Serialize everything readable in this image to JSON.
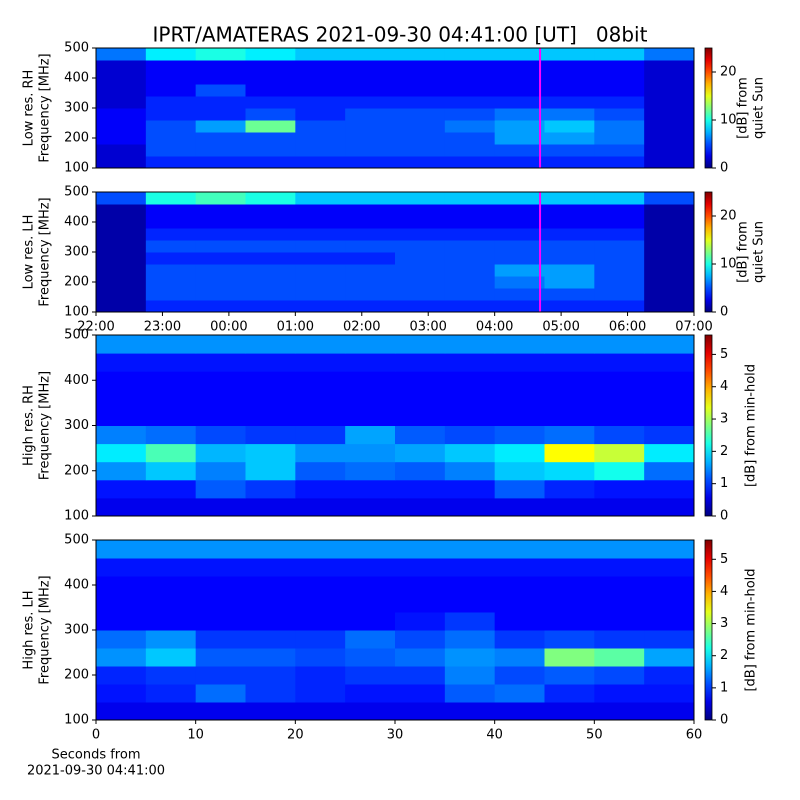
{
  "chart_data": [
    {
      "type": "heatmap",
      "title": "IPRT/AMATERAS 2021-09-30 04:41:00 [UT]   08bit",
      "ylabel": [
        "Low res. RH",
        "Frequency [MHz]"
      ],
      "cbar_label": [
        "[dB] from",
        "quiet Sun"
      ],
      "xlim": [
        22,
        31
      ],
      "ylim": [
        100,
        500
      ],
      "yticks": [
        100,
        200,
        300,
        400,
        500
      ],
      "clim": [
        0,
        25
      ],
      "cticks": [
        0,
        10,
        20
      ],
      "vline": 28.683,
      "vline_color": "#ff00ff",
      "z": [
        [
          2,
          4,
          4,
          4,
          4,
          4,
          4,
          4,
          4,
          4,
          4,
          2
        ],
        [
          2,
          5,
          5,
          5,
          5,
          5,
          5,
          5,
          5,
          5,
          5,
          2
        ],
        [
          3,
          5,
          5,
          5,
          5,
          5,
          5,
          5,
          7,
          7,
          6,
          2
        ],
        [
          3,
          5,
          7,
          12,
          5,
          5,
          5,
          6,
          7,
          8,
          6,
          2
        ],
        [
          3,
          4,
          4,
          5,
          4,
          5,
          5,
          5,
          6,
          6,
          5,
          2
        ],
        [
          2,
          4,
          4,
          4,
          4,
          4,
          4,
          4,
          4,
          4,
          4,
          2
        ],
        [
          2,
          3,
          5,
          3,
          3,
          3,
          3,
          3,
          3,
          3,
          3,
          2
        ],
        [
          2,
          3,
          3,
          3,
          3,
          3,
          3,
          3,
          3,
          3,
          3,
          2
        ],
        [
          2,
          3,
          3,
          3,
          3,
          3,
          3,
          3,
          3,
          3,
          3,
          2
        ],
        [
          6,
          9,
          10,
          9,
          8,
          8,
          8,
          8,
          8,
          8,
          8,
          6
        ]
      ]
    },
    {
      "type": "heatmap",
      "ylabel": [
        "Low res. LH",
        "Frequency [MHz]"
      ],
      "cbar_label": [
        "[dB] from",
        "quiet Sun"
      ],
      "xlim": [
        22,
        31
      ],
      "ylim": [
        100,
        500
      ],
      "yticks": [
        100,
        200,
        300,
        400,
        500
      ],
      "xticks": [
        {
          "value": 22,
          "label": "22:00"
        },
        {
          "value": 23,
          "label": "23:00"
        },
        {
          "value": 24,
          "label": "00:00"
        },
        {
          "value": 25,
          "label": "01:00"
        },
        {
          "value": 26,
          "label": "02:00"
        },
        {
          "value": 27,
          "label": "03:00"
        },
        {
          "value": 28,
          "label": "04:00"
        },
        {
          "value": 29,
          "label": "05:00"
        },
        {
          "value": 30,
          "label": "06:00"
        },
        {
          "value": 31,
          "label": "07:00"
        }
      ],
      "clim": [
        0,
        25
      ],
      "cticks": [
        0,
        10,
        20
      ],
      "vline": 28.683,
      "vline_color": "#ff00ff",
      "z": [
        [
          1,
          4,
          4,
          4,
          4,
          4,
          4,
          4,
          4,
          4,
          4,
          1
        ],
        [
          1,
          5,
          5,
          5,
          5,
          5,
          5,
          5,
          5,
          5,
          5,
          1
        ],
        [
          1,
          5,
          5,
          5,
          5,
          5,
          5,
          5,
          6,
          7,
          5,
          1
        ],
        [
          1,
          5,
          5,
          5,
          5,
          5,
          5,
          5,
          7,
          7,
          5,
          1
        ],
        [
          1,
          4,
          4,
          4,
          4,
          4,
          5,
          5,
          5,
          5,
          5,
          1
        ],
        [
          1,
          5,
          5,
          5,
          5,
          5,
          5,
          5,
          5,
          5,
          5,
          1
        ],
        [
          1,
          4,
          4,
          4,
          4,
          4,
          4,
          4,
          4,
          4,
          4,
          1
        ],
        [
          1,
          3,
          3,
          3,
          3,
          3,
          3,
          3,
          3,
          3,
          3,
          1
        ],
        [
          1,
          3,
          3,
          3,
          3,
          3,
          3,
          3,
          3,
          3,
          3,
          1
        ],
        [
          5,
          10,
          11,
          10,
          8,
          8,
          8,
          8,
          8,
          8,
          8,
          5
        ]
      ]
    },
    {
      "type": "heatmap",
      "ylabel": [
        "High res. RH",
        "Frequency [MHz]"
      ],
      "cbar_label": [
        "[dB] from min-hold"
      ],
      "xlim": [
        0,
        60
      ],
      "ylim": [
        100,
        500
      ],
      "yticks": [
        100,
        200,
        300,
        400,
        500
      ],
      "clim": [
        0,
        5.6
      ],
      "cticks": [
        0,
        1,
        2,
        3,
        4,
        5
      ],
      "z": [
        [
          0.6,
          0.6,
          0.6,
          0.6,
          0.6,
          0.6,
          0.6,
          0.6,
          0.6,
          0.6,
          0.6,
          0.6
        ],
        [
          0.8,
          0.8,
          1.2,
          1,
          0.8,
          0.8,
          0.8,
          0.8,
          1.2,
          0.9,
          0.8,
          0.8
        ],
        [
          1.5,
          1.8,
          1.4,
          1.8,
          1.2,
          1.3,
          1.2,
          1.4,
          1.8,
          1.9,
          2.2,
          1.3
        ],
        [
          2,
          2.5,
          1.7,
          1.8,
          1.5,
          1.5,
          1.6,
          1.8,
          2,
          3.5,
          3.2,
          2
        ],
        [
          1.4,
          1.3,
          1.1,
          1,
          1,
          1.6,
          1.2,
          1.1,
          1.2,
          1.3,
          1.1,
          1
        ],
        [
          0.7,
          0.7,
          0.7,
          0.7,
          0.7,
          0.7,
          0.7,
          0.7,
          0.7,
          0.7,
          0.7,
          0.7
        ],
        [
          0.7,
          0.7,
          0.7,
          0.7,
          0.7,
          0.7,
          0.7,
          0.7,
          0.7,
          0.7,
          0.7,
          0.7
        ],
        [
          0.7,
          0.7,
          0.7,
          0.7,
          0.7,
          0.7,
          0.7,
          0.7,
          0.7,
          0.7,
          0.7,
          0.7
        ],
        [
          0.8,
          0.8,
          0.8,
          0.8,
          0.8,
          0.8,
          0.8,
          0.8,
          0.8,
          0.8,
          0.8,
          0.8
        ],
        [
          1.5,
          1.5,
          1.5,
          1.5,
          1.5,
          1.5,
          1.5,
          1.5,
          1.5,
          1.5,
          1.5,
          1.5
        ]
      ]
    },
    {
      "type": "heatmap",
      "ylabel": [
        "High res. LH",
        "Frequency [MHz]"
      ],
      "cbar_label": [
        "[dB] from min-hold"
      ],
      "xlim": [
        0,
        60
      ],
      "ylim": [
        100,
        500
      ],
      "yticks": [
        100,
        200,
        300,
        400,
        500
      ],
      "xticks": [
        0,
        10,
        20,
        30,
        40,
        50,
        60
      ],
      "xlabel": [
        "Seconds from",
        "2021-09-30 04:41:00"
      ],
      "clim": [
        0,
        5.6
      ],
      "cticks": [
        0,
        1,
        2,
        3,
        4,
        5
      ],
      "z": [
        [
          0.6,
          0.6,
          0.6,
          0.6,
          0.6,
          0.6,
          0.6,
          0.6,
          0.6,
          0.6,
          0.6,
          0.6
        ],
        [
          0.8,
          0.9,
          1.3,
          1,
          0.9,
          0.8,
          0.8,
          1.2,
          1.3,
          0.9,
          0.8,
          0.8
        ],
        [
          0.9,
          1,
          1,
          1,
          0.9,
          1,
          1,
          1.4,
          1.1,
          1.2,
          1.1,
          0.9
        ],
        [
          1.5,
          1.8,
          1.2,
          1.2,
          1.1,
          1.2,
          1.3,
          1.5,
          1.4,
          2.8,
          2.6,
          1.6
        ],
        [
          1.3,
          1.5,
          1,
          1,
          1,
          1.3,
          1.1,
          1.3,
          1,
          1.1,
          1,
          1
        ],
        [
          0.7,
          0.7,
          0.7,
          0.7,
          0.7,
          0.7,
          0.8,
          1,
          0.7,
          0.7,
          0.7,
          0.7
        ],
        [
          0.7,
          0.7,
          0.7,
          0.7,
          0.7,
          0.7,
          0.7,
          0.7,
          0.7,
          0.7,
          0.7,
          0.7
        ],
        [
          0.7,
          0.7,
          0.7,
          0.7,
          0.7,
          0.7,
          0.7,
          0.7,
          0.7,
          0.7,
          0.7,
          0.7
        ],
        [
          0.8,
          0.8,
          0.8,
          0.8,
          0.8,
          0.8,
          0.8,
          0.8,
          0.8,
          0.8,
          0.8,
          0.8
        ],
        [
          1.5,
          1.5,
          1.5,
          1.5,
          1.5,
          1.5,
          1.5,
          1.5,
          1.5,
          1.5,
          1.5,
          1.5
        ]
      ]
    }
  ]
}
